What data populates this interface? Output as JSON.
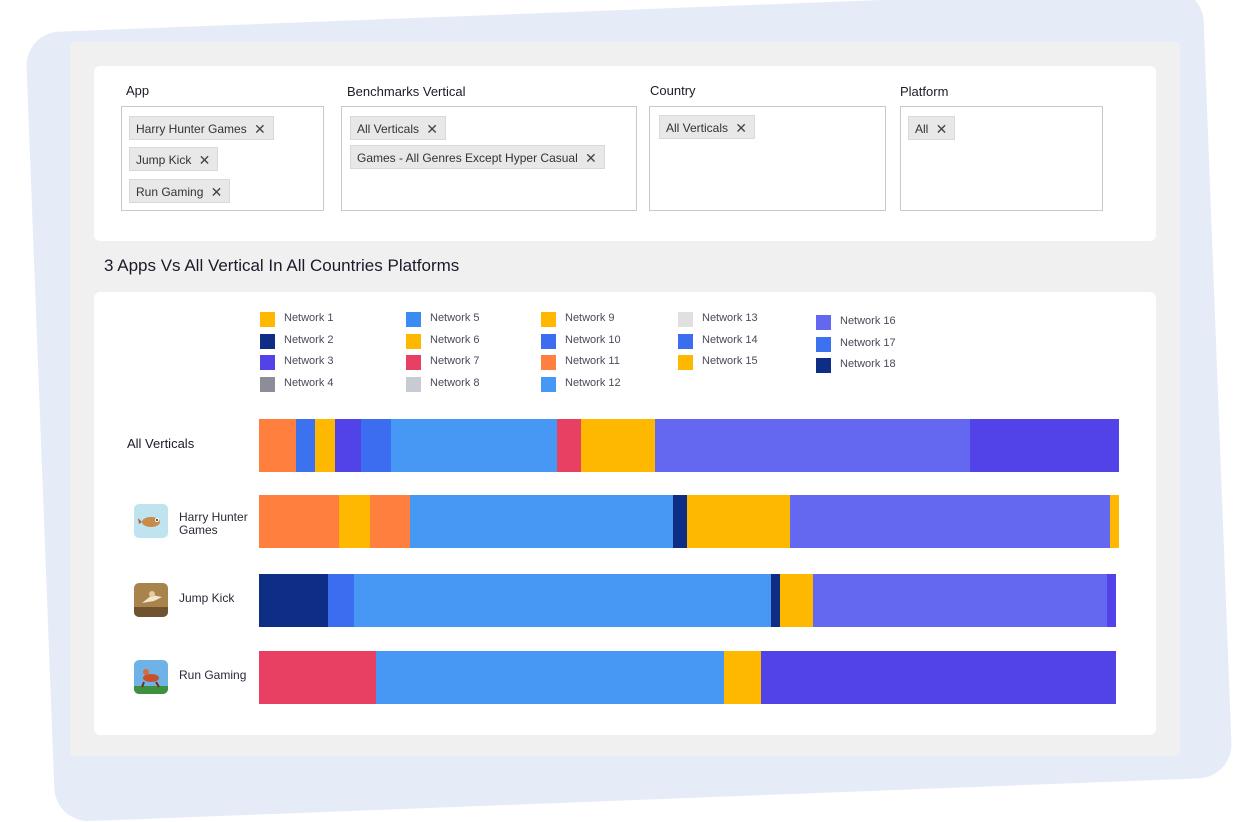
{
  "filters": {
    "app": {
      "label": "App",
      "chips": [
        "Harry Hunter Games",
        "Jump Kick",
        "Run Gaming"
      ]
    },
    "vertical": {
      "label": "Benchmarks Vertical",
      "chips": [
        "All Verticals",
        "Games - All Genres Except Hyper Casual"
      ]
    },
    "country": {
      "label": "Country",
      "chips": [
        "All Verticals"
      ]
    },
    "platform": {
      "label": "Platform",
      "chips": [
        "All"
      ]
    },
    "remove_glyph": "✕"
  },
  "chart": {
    "title": "3 Apps Vs All Vertical In All Countries Platforms"
  },
  "chart_data": {
    "type": "bar",
    "orientation": "horizontal",
    "stacked": true,
    "normalized": true,
    "legend": [
      {
        "name": "Network 1",
        "color": "#ffb800"
      },
      {
        "name": "Network 2",
        "color": "#0d2e84"
      },
      {
        "name": "Network 3",
        "color": "#5243e9"
      },
      {
        "name": "Network 4",
        "color": "#8d8d99"
      },
      {
        "name": "Network 5",
        "color": "#3b8cf2"
      },
      {
        "name": "Network 6",
        "color": "#ffb800"
      },
      {
        "name": "Network 7",
        "color": "#e84063"
      },
      {
        "name": "Network 8",
        "color": "#c8cbd2"
      },
      {
        "name": "Network 9",
        "color": "#ffb800"
      },
      {
        "name": "Network 10",
        "color": "#3c6cf0"
      },
      {
        "name": "Network 11",
        "color": "#ff7f3f"
      },
      {
        "name": "Network 12",
        "color": "#4798f4"
      },
      {
        "name": "Network 13",
        "color": "#e0e0e0"
      },
      {
        "name": "Network 14",
        "color": "#3c6cf0"
      },
      {
        "name": "Network 15",
        "color": "#ffb800"
      },
      {
        "name": "Network 16",
        "color": "#6467ef"
      },
      {
        "name": "Network 17",
        "color": "#3d72ee"
      },
      {
        "name": "Network 18",
        "color": "#0d2e84"
      }
    ],
    "categories": [
      "All Verticals",
      "Harry Hunter Games",
      "Jump Kick",
      "Run Gaming"
    ],
    "rows": [
      {
        "label": "All Verticals",
        "icon": null,
        "segments": [
          {
            "color": "#ff7f3f",
            "value": 4.3
          },
          {
            "color": "#3d72ee",
            "value": 2.2
          },
          {
            "color": "#ffb800",
            "value": 2.3
          },
          {
            "color": "#5243e9",
            "value": 3.1
          },
          {
            "color": "#3c6cf0",
            "value": 3.4
          },
          {
            "color": "#4798f4",
            "value": 19.4
          },
          {
            "color": "#e84063",
            "value": 2.7
          },
          {
            "color": "#ffb800",
            "value": 8.7
          },
          {
            "color": "#6467ef",
            "value": 36.6
          },
          {
            "color": "#5243e9",
            "value": 17.3
          }
        ]
      },
      {
        "label": "Harry Hunter Games",
        "icon": "harry-hunter-app-icon",
        "segments": [
          {
            "color": "#ff7f3f",
            "value": 9.3
          },
          {
            "color": "#ffb800",
            "value": 3.6
          },
          {
            "color": "#ff7f3f",
            "value": 4.6
          },
          {
            "color": "#4798f4",
            "value": 30.6
          },
          {
            "color": "#0d2e84",
            "value": 1.7
          },
          {
            "color": "#ffb800",
            "value": 11.9
          },
          {
            "color": "#6467ef",
            "value": 37.2
          },
          {
            "color": "#ffb800",
            "value": 1.1
          }
        ]
      },
      {
        "label": "Jump Kick",
        "icon": "jump-kick-app-icon",
        "segments": [
          {
            "color": "#0d2e84",
            "value": 8.0
          },
          {
            "color": "#3c6cf0",
            "value": 3.0
          },
          {
            "color": "#4798f4",
            "value": 48.6
          },
          {
            "color": "#0d2e84",
            "value": 1.0
          },
          {
            "color": "#ffb800",
            "value": 3.9
          },
          {
            "color": "#6467ef",
            "value": 34.1
          },
          {
            "color": "#5243e9",
            "value": 1.1
          }
        ]
      },
      {
        "label": "Run Gaming",
        "icon": "run-gaming-app-icon",
        "segments": [
          {
            "color": "#e84063",
            "value": 13.6
          },
          {
            "color": "#4798f4",
            "value": 40.7
          },
          {
            "color": "#ffb800",
            "value": 4.3
          },
          {
            "color": "#5243e9",
            "value": 41.4
          }
        ]
      }
    ]
  }
}
